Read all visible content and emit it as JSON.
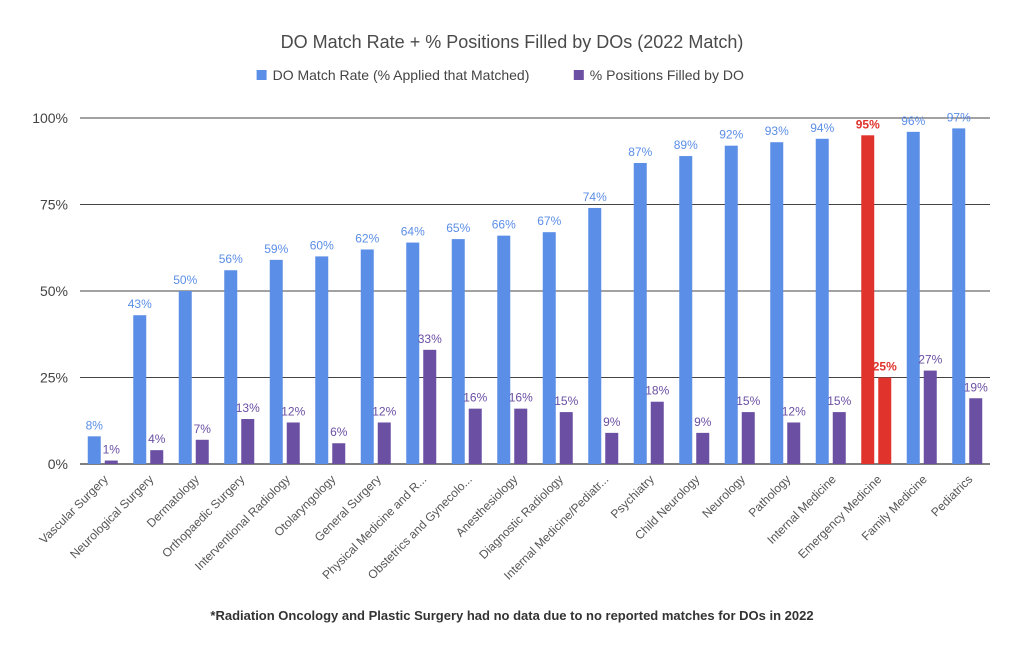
{
  "chart_data": {
    "type": "bar",
    "title": "DO Match Rate + % Positions Filled by DOs (2022 Match)",
    "footnote": "*Radiation Oncology and Plastic Surgery had no data due to no reported matches for DOs in 2022",
    "ylim": [
      0,
      100
    ],
    "yticks": [
      {
        "value": 0,
        "label": "0%"
      },
      {
        "value": 25,
        "label": "25%"
      },
      {
        "value": 50,
        "label": "50%"
      },
      {
        "value": 75,
        "label": "75%"
      },
      {
        "value": 100,
        "label": "100%"
      }
    ],
    "categories": [
      "Vascular Surgery",
      "Neurological Surgery",
      "Dermatology",
      "Orthopaedic Surgery",
      "Interventional Radiology",
      "Otolaryngology",
      "General Surgery",
      "Physical Medicine and R...",
      "Obstetrics and Gynecolo...",
      "Anesthesiology",
      "Diagnostic Radiology",
      "Internal Medicine/Pediatr...",
      "Psychiatry",
      "Child Neurology",
      "Neurology",
      "Pathology",
      "Internal Medicine",
      "Emergency Medicine",
      "Family Medicine",
      "Pediatrics"
    ],
    "series": [
      {
        "name": "DO Match Rate (% Applied that Matched)",
        "color": "#5b8ee6",
        "values": [
          8,
          43,
          50,
          56,
          59,
          60,
          62,
          64,
          65,
          66,
          67,
          74,
          87,
          89,
          92,
          93,
          94,
          95,
          96,
          97
        ],
        "labels": [
          "8%",
          "43%",
          "50%",
          "56%",
          "59%",
          "60%",
          "62%",
          "64%",
          "65%",
          "66%",
          "67%",
          "74%",
          "87%",
          "89%",
          "92%",
          "93%",
          "94%",
          "95%",
          "96%",
          "97%"
        ]
      },
      {
        "name": "% Positions Filled by DO",
        "color": "#6a4fa3",
        "values": [
          1,
          4,
          7,
          13,
          12,
          6,
          12,
          33,
          16,
          16,
          15,
          9,
          18,
          9,
          15,
          12,
          15,
          25,
          27,
          19
        ],
        "labels": [
          "1%",
          "4%",
          "7%",
          "13%",
          "12%",
          "6%",
          "12%",
          "33%",
          "16%",
          "16%",
          "15%",
          "9%",
          "18%",
          "9%",
          "15%",
          "12%",
          "15%",
          "25%",
          "27%",
          "19%"
        ]
      }
    ],
    "highlight": {
      "category_index": 17,
      "color": "#e0332b"
    },
    "legend_position": "top-center",
    "grid": true
  }
}
